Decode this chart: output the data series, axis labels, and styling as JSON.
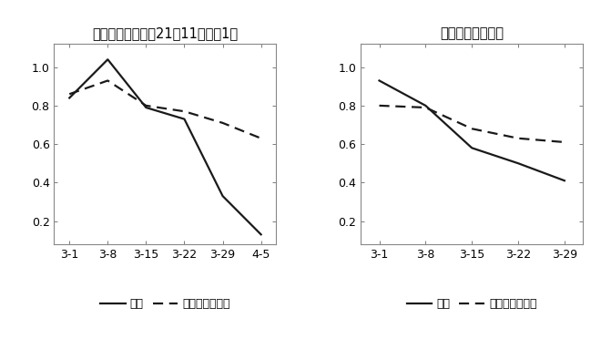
{
  "chart1": {
    "title": "卡车流量（环比，21年11月初为1）",
    "x_labels": [
      "3-1",
      "3-8",
      "3-15",
      "3-22",
      "3-29",
      "4-5"
    ],
    "shanghai": [
      0.84,
      1.04,
      0.79,
      0.73,
      0.33,
      0.13
    ],
    "national": [
      0.86,
      0.93,
      0.8,
      0.77,
      0.71,
      0.63
    ],
    "ylim": [
      0.08,
      1.12
    ],
    "yticks": [
      0.2,
      0.4,
      0.6,
      0.8,
      1.0
    ]
  },
  "chart2": {
    "title": "美团指数（同比）",
    "x_labels": [
      "3-1",
      "3-8",
      "3-15",
      "3-22",
      "3-29"
    ],
    "shanghai": [
      0.93,
      0.8,
      0.58,
      0.5,
      0.41
    ],
    "national": [
      0.8,
      0.79,
      0.68,
      0.63,
      0.61
    ],
    "ylim": [
      0.08,
      1.12
    ],
    "yticks": [
      0.2,
      0.4,
      0.6,
      0.8,
      1.0
    ]
  },
  "legend_shanghai": "上海",
  "legend_national": "全国（除上海）",
  "line_color": "#1a1a1a",
  "bg_color": "#ffffff",
  "fig_bg": "#ffffff",
  "solid_lw": 1.6,
  "dash_lw": 1.6,
  "title_fontsize": 10.5,
  "tick_fontsize": 9,
  "legend_fontsize": 9
}
